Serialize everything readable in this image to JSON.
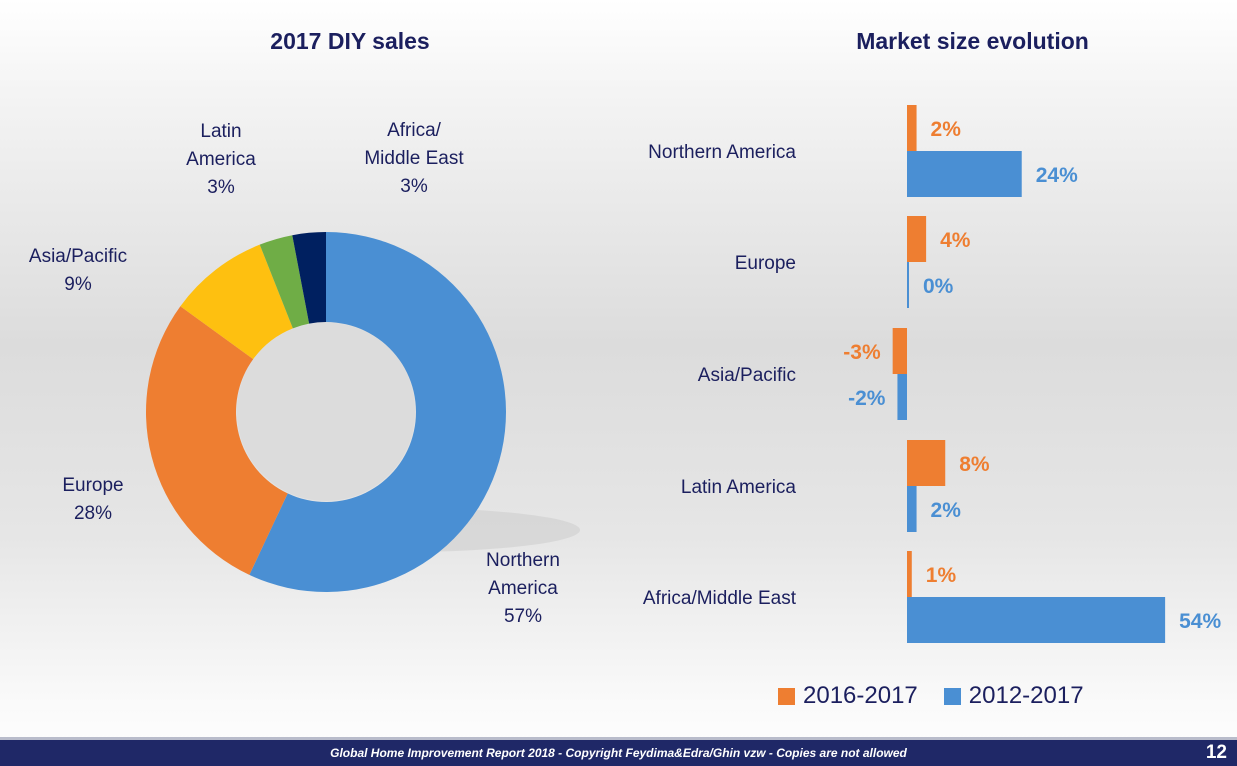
{
  "chart_data": [
    {
      "type": "pie",
      "title": "2017 DIY sales",
      "donut": true,
      "slices": [
        {
          "label_lines": [
            "Northern",
            "America"
          ],
          "name": "Northern America",
          "value": 57,
          "value_label": "57%",
          "color": "#4a8fd3"
        },
        {
          "label_lines": [
            "Europe"
          ],
          "name": "Europe",
          "value": 28,
          "value_label": "28%",
          "color": "#ee7e31"
        },
        {
          "label_lines": [
            "Asia/Pacific"
          ],
          "name": "Asia/Pacific",
          "value": 9,
          "value_label": "9%",
          "color": "#fec010"
        },
        {
          "label_lines": [
            "Latin",
            "America"
          ],
          "name": "Latin America",
          "value": 3,
          "value_label": "3%",
          "color": "#6fad46"
        },
        {
          "label_lines": [
            "Africa/",
            "Middle East"
          ],
          "name": "Africa/Middle East",
          "value": 3,
          "value_label": "3%",
          "color": "#002060"
        }
      ]
    },
    {
      "type": "bar",
      "orientation": "horizontal",
      "title": "Market size evolution",
      "categories": [
        "Northern America",
        "Europe",
        "Asia/Pacific",
        "Latin America",
        "Africa/Middle East"
      ],
      "series": [
        {
          "name": "2016-2017",
          "color": "#ee7e31",
          "values": [
            2,
            4,
            -3,
            8,
            1
          ],
          "labels": [
            "2%",
            "4%",
            "-3%",
            "8%",
            "1%"
          ]
        },
        {
          "name": "2012-2017",
          "color": "#4a8fd3",
          "values": [
            24,
            0,
            -2,
            2,
            54
          ],
          "labels": [
            "24%",
            "0%",
            "-2%",
            "2%",
            "54%"
          ]
        }
      ],
      "legend": "bottom"
    }
  ],
  "footer": {
    "text": "Global Home Improvement Report 2018  - Copyright Feydima&Edra/Ghin vzw - Copies are not allowed",
    "page_number": "12"
  }
}
